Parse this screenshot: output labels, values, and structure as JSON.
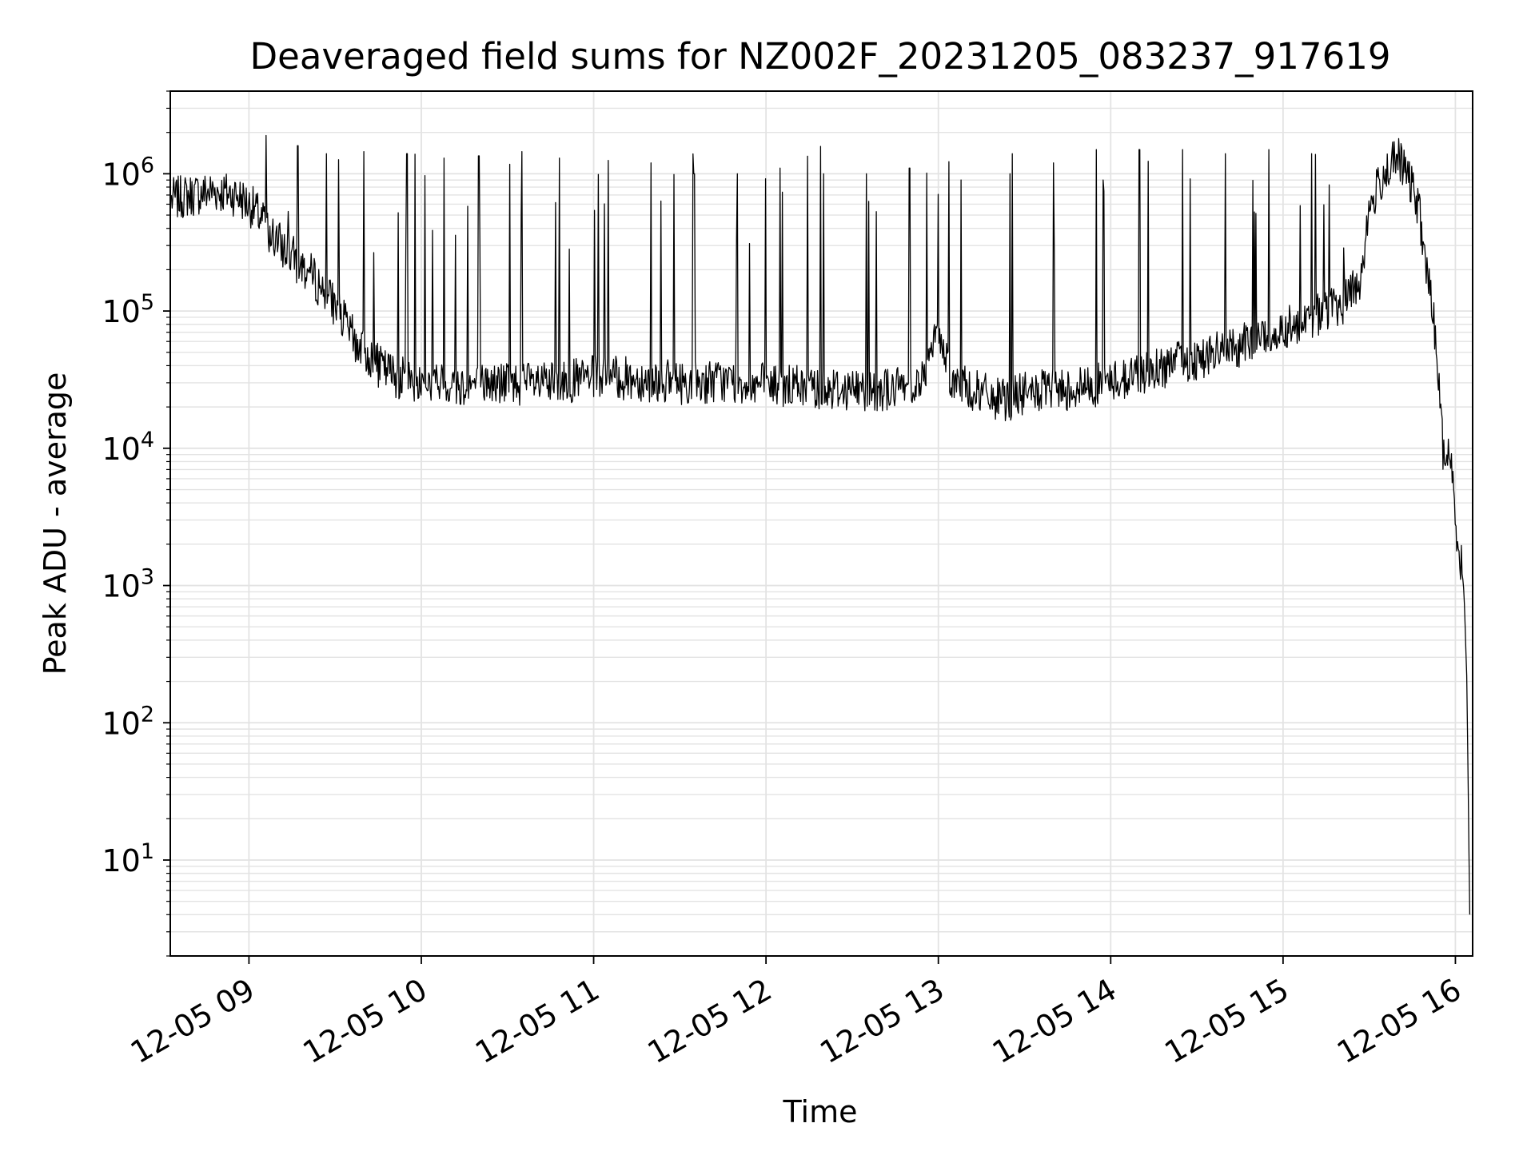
{
  "chart_data": {
    "type": "line",
    "title": "Deaveraged field sums for NZ002F_20231205_083237_917619",
    "xlabel": "Time",
    "ylabel": "Peak ADU - average",
    "yscale": "log",
    "grid": true,
    "line_color": "#000000",
    "grid_color": "#e3e3e3",
    "xlim": [
      "2023-12-05 08:32:37",
      "2023-12-05 16:06:00"
    ],
    "ylim": [
      2,
      4000000
    ],
    "x_ticks": [
      {
        "value": "2023-12-05 09:00",
        "label": "12-05 09"
      },
      {
        "value": "2023-12-05 10:00",
        "label": "12-05 10"
      },
      {
        "value": "2023-12-05 11:00",
        "label": "12-05 11"
      },
      {
        "value": "2023-12-05 12:00",
        "label": "12-05 12"
      },
      {
        "value": "2023-12-05 13:00",
        "label": "12-05 13"
      },
      {
        "value": "2023-12-05 14:00",
        "label": "12-05 14"
      },
      {
        "value": "2023-12-05 15:00",
        "label": "12-05 15"
      },
      {
        "value": "2023-12-05 16:00",
        "label": "12-05 16"
      }
    ],
    "y_ticks": [
      {
        "value": 10,
        "base": "10",
        "exp": "1"
      },
      {
        "value": 100,
        "base": "10",
        "exp": "2"
      },
      {
        "value": 1000,
        "base": "10",
        "exp": "3"
      },
      {
        "value": 10000,
        "base": "10",
        "exp": "4"
      },
      {
        "value": 100000,
        "base": "10",
        "exp": "5"
      },
      {
        "value": 1000000,
        "base": "10",
        "exp": "6"
      }
    ],
    "series": [
      {
        "x": [
          "2023-12-05 08:33",
          "2023-12-05 08:40",
          "2023-12-05 08:48",
          "2023-12-05 08:56",
          "2023-12-05 09:02",
          "2023-12-05 09:08",
          "2023-12-05 09:15",
          "2023-12-05 09:22",
          "2023-12-05 09:30",
          "2023-12-05 09:37",
          "2023-12-05 09:45",
          "2023-12-05 09:52",
          "2023-12-05 10:00",
          "2023-12-05 10:15",
          "2023-12-05 10:30",
          "2023-12-05 10:45",
          "2023-12-05 11:00",
          "2023-12-05 11:15",
          "2023-12-05 11:30",
          "2023-12-05 11:45",
          "2023-12-05 12:00",
          "2023-12-05 12:15",
          "2023-12-05 12:30",
          "2023-12-05 12:45",
          "2023-12-05 12:55",
          "2023-12-05 13:00",
          "2023-12-05 13:05",
          "2023-12-05 13:15",
          "2023-12-05 13:22",
          "2023-12-05 13:30",
          "2023-12-05 13:45",
          "2023-12-05 14:00",
          "2023-12-05 14:15",
          "2023-12-05 14:30",
          "2023-12-05 14:45",
          "2023-12-05 15:00",
          "2023-12-05 15:10",
          "2023-12-05 15:20",
          "2023-12-05 15:27",
          "2023-12-05 15:30",
          "2023-12-05 15:35",
          "2023-12-05 15:40",
          "2023-12-05 15:43",
          "2023-12-05 15:47",
          "2023-12-05 15:50",
          "2023-12-05 15:53",
          "2023-12-05 15:56",
          "2023-12-05 15:58",
          "2023-12-05 16:00",
          "2023-12-05 16:02",
          "2023-12-05 16:03",
          "2023-12-05 16:04",
          "2023-12-05 16:05"
        ],
        "y": [
          650000,
          700000,
          750000,
          700000,
          550000,
          350000,
          250000,
          180000,
          110000,
          60000,
          40000,
          33000,
          30000,
          29000,
          30000,
          29000,
          33000,
          32000,
          30000,
          31000,
          29000,
          28000,
          27000,
          27000,
          32000,
          75000,
          30000,
          25000,
          22000,
          25000,
          27000,
          30000,
          38000,
          45000,
          55000,
          75000,
          90000,
          110000,
          170000,
          550000,
          1000000,
          1300000,
          1000000,
          600000,
          200000,
          70000,
          8000,
          10000,
          3000,
          1500,
          900,
          200,
          4
        ],
        "spikes": {
          "x": [
            "2023-12-05 09:06",
            "2023-12-05 09:17",
            "2023-12-05 09:27",
            "2023-12-05 09:40",
            "2023-12-05 09:55",
            "2023-12-05 10:08",
            "2023-12-05 10:20",
            "2023-12-05 10:35",
            "2023-12-05 10:48",
            "2023-12-05 11:05",
            "2023-12-05 11:20",
            "2023-12-05 11:35",
            "2023-12-05 11:50",
            "2023-12-05 12:05",
            "2023-12-05 12:20",
            "2023-12-05 12:35",
            "2023-12-05 12:50",
            "2023-12-05 13:08",
            "2023-12-05 13:25",
            "2023-12-05 13:40",
            "2023-12-05 13:55",
            "2023-12-05 14:10",
            "2023-12-05 14:25",
            "2023-12-05 14:40",
            "2023-12-05 14:55",
            "2023-12-05 15:10"
          ],
          "y": [
            1900000,
            1600000,
            1400000,
            1450000,
            1400000,
            1300000,
            1350000,
            1450000,
            1300000,
            1250000,
            1200000,
            1000000,
            1000000,
            1100000,
            1000000,
            1000000,
            1100000,
            900000,
            1000000,
            1200000,
            1500000,
            1500000,
            1500000,
            1400000,
            1500000,
            1400000
          ]
        }
      }
    ]
  }
}
